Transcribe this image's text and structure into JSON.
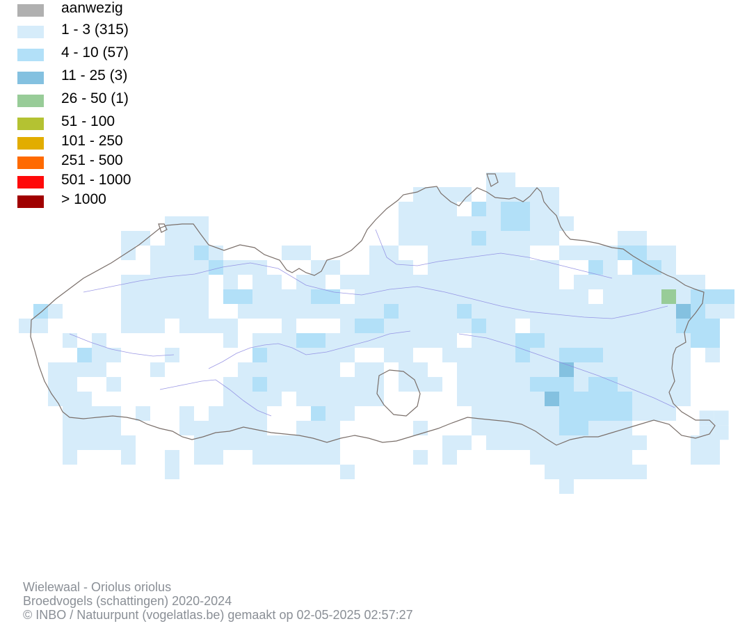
{
  "legend": [
    {
      "label": "aanwezig",
      "color": "#b0b0b0"
    },
    {
      "label": "1 - 3 (315)",
      "color": "#d6ecfa"
    },
    {
      "label": "4 - 10 (57)",
      "color": "#b2e0f8"
    },
    {
      "label": "11 - 25 (3)",
      "color": "#84c1e0"
    },
    {
      "label": "26 - 50 (1)",
      "color": "#98cc98"
    },
    {
      "label": "51 - 100",
      "color": "#b4c232"
    },
    {
      "label": "101 - 250",
      "color": "#e2ad00"
    },
    {
      "label": "251 - 500",
      "color": "#ff6a00"
    },
    {
      "label": "501 - 1000",
      "color": "#ff0a0a"
    },
    {
      "label": "> 1000",
      "color": "#a00000"
    }
  ],
  "footer": {
    "species": "Wielewaal - Oriolus oriolus",
    "dataset": "Broedvogels (schattingen) 2020-2024",
    "credit": "© INBO / Natuurpunt (vogelatlas.be) gemaakt op 02-05-2025 02:57:27"
  },
  "colors": {
    "border": "#7a6f6a",
    "river": "#8a86e0"
  }
}
